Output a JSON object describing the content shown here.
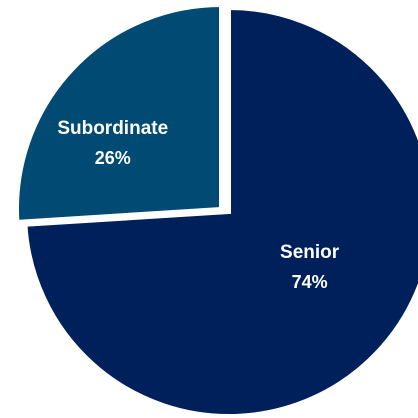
{
  "chart_data": {
    "type": "pie",
    "slices": [
      {
        "label": "Senior",
        "value": 74,
        "value_text": "74%",
        "color": "#00205b"
      },
      {
        "label": "Subordinate",
        "value": 26,
        "value_text": "26%",
        "color": "#004a74"
      }
    ],
    "title": "",
    "legend": "none",
    "slice_labels": "inside",
    "exploded_slice": "Subordinate"
  }
}
